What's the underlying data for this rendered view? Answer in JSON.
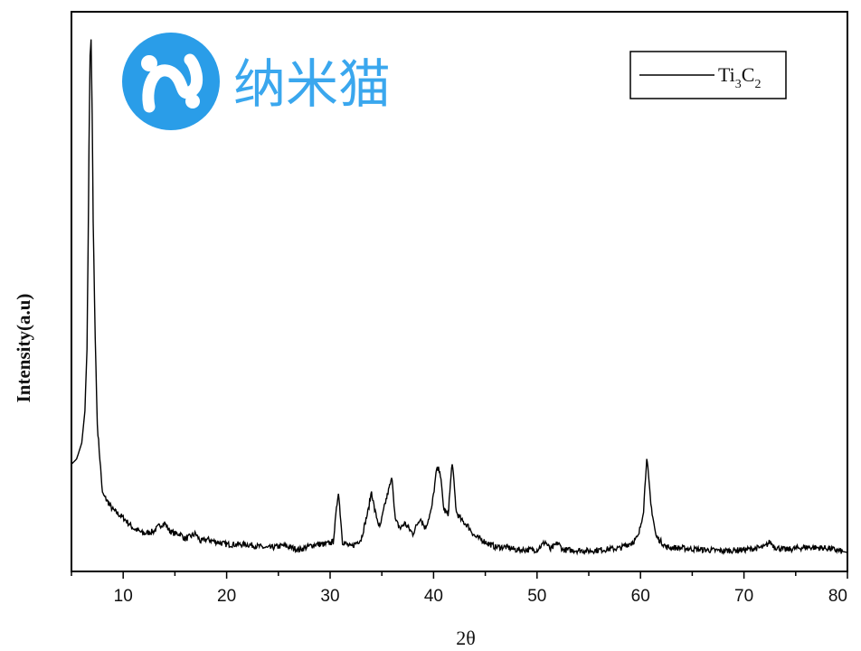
{
  "watermark": {
    "text": "纳米猫",
    "color": "#2a9de8"
  },
  "chart_data": {
    "type": "line",
    "xlabel": "2θ",
    "ylabel": "Intensity(a.u)",
    "xlim": [
      5,
      80
    ],
    "xticks": [
      10,
      20,
      30,
      40,
      50,
      60,
      70,
      80
    ],
    "yticks_shown": false,
    "grid": false,
    "legend_position": "top-right",
    "series": [
      {
        "name": "Ti3C2",
        "legend_main": "Ti",
        "legend_sub1": "3",
        "legend_mid": "C",
        "legend_sub2": "2",
        "color": "#000000",
        "x": [
          5.0,
          5.5,
          6.0,
          6.3,
          6.5,
          6.6,
          6.7,
          6.8,
          6.9,
          7.0,
          7.1,
          7.3,
          7.5,
          8.0,
          9.0,
          10.0,
          11.0,
          12.0,
          13.0,
          13.5,
          14.0,
          14.5,
          15.0,
          15.5,
          16.0,
          17.0,
          17.5,
          18.0,
          20.0,
          22.0,
          24.0,
          25.5,
          27.0,
          28.5,
          29.5,
          30.3,
          30.8,
          31.2,
          32.0,
          33.0,
          33.7,
          34.0,
          34.3,
          34.8,
          35.3,
          35.7,
          36.0,
          36.3,
          36.8,
          37.2,
          38.0,
          38.7,
          39.2,
          39.8,
          40.3,
          40.6,
          41.0,
          41.4,
          41.8,
          42.2,
          42.7,
          43.3,
          44.0,
          45.0,
          46.0,
          47.0,
          48.0,
          50.0,
          50.8,
          51.3,
          52.0,
          52.5,
          55.0,
          58.0,
          59.3,
          59.8,
          60.3,
          60.6,
          61.0,
          61.5,
          62.5,
          64.0,
          66.0,
          68.0,
          70.0,
          72.0,
          72.5,
          73.0,
          74.0,
          76.0,
          78.0,
          80.0
        ],
        "y": [
          16.5,
          17.5,
          20.5,
          26.5,
          38.0,
          55.0,
          76.0,
          93.0,
          96.0,
          82.0,
          62.0,
          40.0,
          24.0,
          11.0,
          8.0,
          6.5,
          4.5,
          3.5,
          4.0,
          5.0,
          5.5,
          4.0,
          3.5,
          3.5,
          2.5,
          3.5,
          2.0,
          2.5,
          1.5,
          1.5,
          0.8,
          1.3,
          0.5,
          1.5,
          1.5,
          2.0,
          11.5,
          2.0,
          1.0,
          2.5,
          8.0,
          11.5,
          8.0,
          4.5,
          9.0,
          12.0,
          14.0,
          6.0,
          4.5,
          5.5,
          3.5,
          6.5,
          4.5,
          8.0,
          15.5,
          15.5,
          8.0,
          7.0,
          17.0,
          7.5,
          6.0,
          5.0,
          3.0,
          2.0,
          1.0,
          1.0,
          0.5,
          0.5,
          2.0,
          0.5,
          1.8,
          0.5,
          0.3,
          0.8,
          2.0,
          3.0,
          8.0,
          18.0,
          9.0,
          3.0,
          1.0,
          0.8,
          0.5,
          0.3,
          0.5,
          1.0,
          2.0,
          1.0,
          0.5,
          1.0,
          0.8,
          0.0
        ]
      }
    ]
  }
}
